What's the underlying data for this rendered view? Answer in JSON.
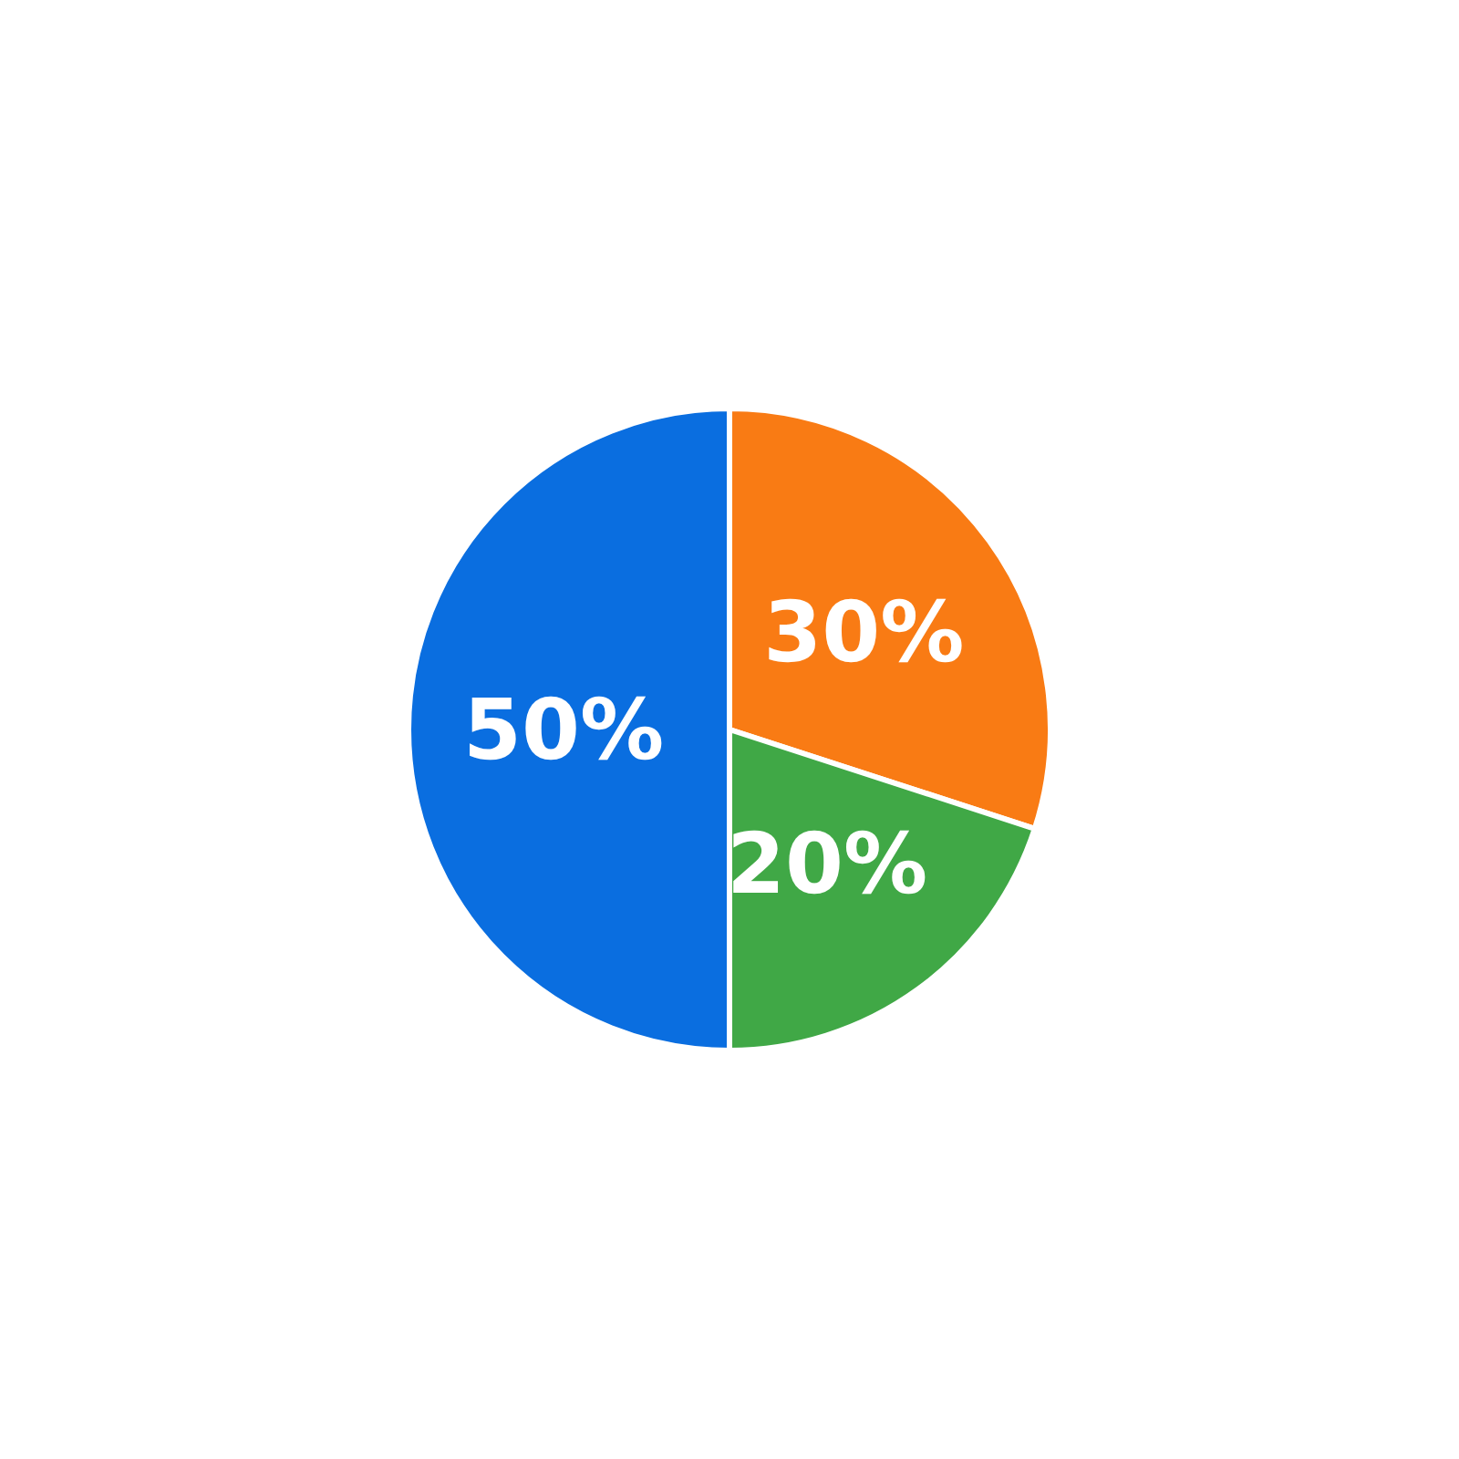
{
  "chart_data": {
    "type": "pie",
    "categories": [
      null,
      null,
      null
    ],
    "values": [
      30,
      20,
      50
    ],
    "colors": [
      "#f97b14",
      "#40a846",
      "#0a6ee0"
    ],
    "value_labels": [
      "30%",
      "20%",
      "50%"
    ]
  }
}
